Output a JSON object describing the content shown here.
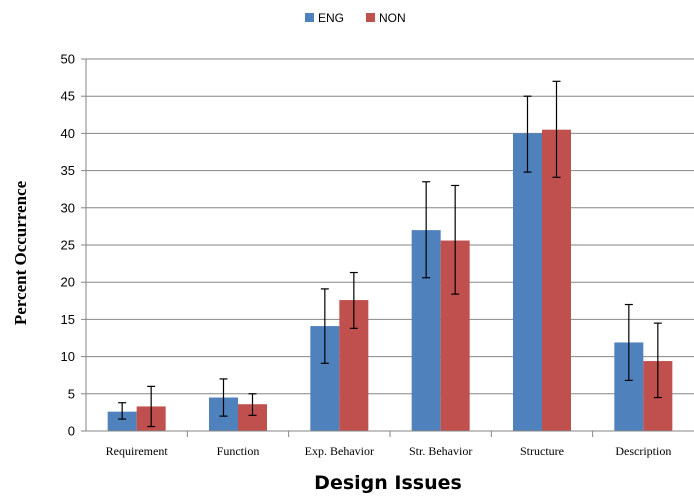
{
  "chart_data": {
    "type": "bar",
    "categories": [
      "Requirement",
      "Function",
      "Exp. Behavior",
      "Str. Behavior",
      "Structure",
      "Description"
    ],
    "series": [
      {
        "name": "ENG",
        "color": "#4F81BD",
        "values": [
          2.6,
          4.5,
          14.1,
          27.0,
          40.0,
          11.9
        ],
        "error_low": [
          1.6,
          2.0,
          9.1,
          20.6,
          34.8,
          6.8
        ],
        "error_high": [
          3.8,
          7.0,
          19.1,
          33.5,
          45.0,
          17.0
        ]
      },
      {
        "name": "NON",
        "color": "#C0504D",
        "values": [
          3.3,
          3.6,
          17.6,
          25.6,
          40.5,
          9.4
        ],
        "error_low": [
          0.6,
          2.1,
          13.8,
          18.4,
          34.1,
          4.5
        ],
        "error_high": [
          6.0,
          5.0,
          21.3,
          33.0,
          47.0,
          14.5
        ]
      }
    ],
    "xlabel": "Design Issues",
    "ylabel": "Percent Occurrence",
    "ylim": [
      0,
      50
    ],
    "yticks": [
      0,
      5,
      10,
      15,
      20,
      25,
      30,
      35,
      40,
      45,
      50
    ],
    "grid": true,
    "legend": "top-center"
  }
}
